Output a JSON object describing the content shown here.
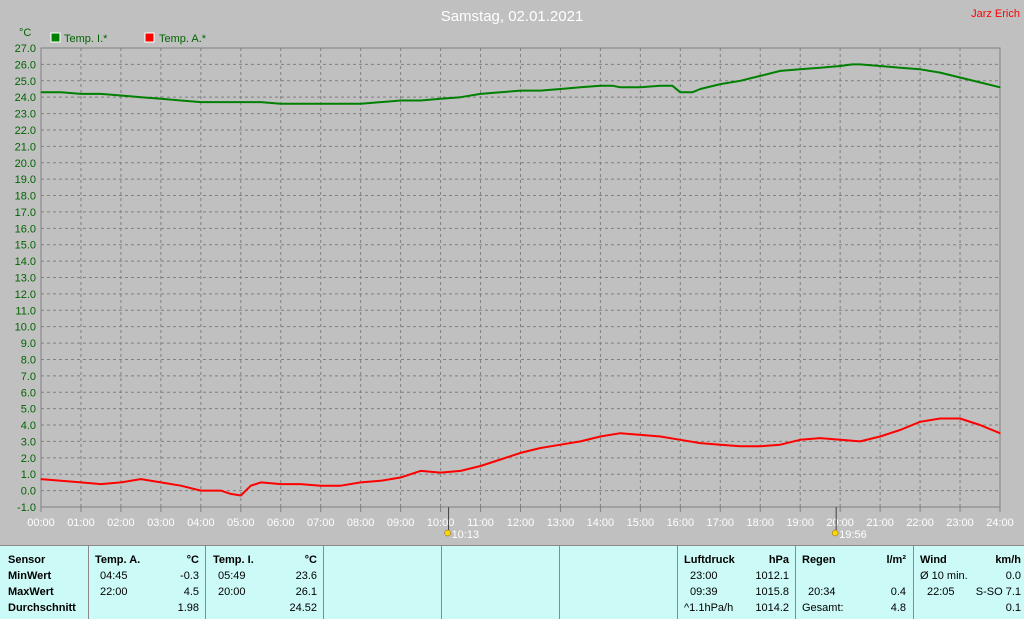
{
  "header": {
    "title": "Samstag, 02.01.2021",
    "author": "Jarz Erich"
  },
  "chart_data": {
    "type": "line",
    "y_unit": "°C",
    "ylim": [
      -1.0,
      27.0
    ],
    "y_ticks": [
      "27.0",
      "26.0",
      "25.0",
      "24.0",
      "23.0",
      "22.0",
      "21.0",
      "20.0",
      "19.0",
      "18.0",
      "17.0",
      "16.0",
      "15.0",
      "14.0",
      "13.0",
      "12.0",
      "11.0",
      "10.0",
      "9.0",
      "8.0",
      "7.0",
      "6.0",
      "5.0",
      "4.0",
      "3.0",
      "2.0",
      "1.0",
      "0.0",
      "-1.0"
    ],
    "x_ticks": [
      "00:00",
      "01:00",
      "02:00",
      "03:00",
      "04:00",
      "05:00",
      "06:00",
      "07:00",
      "08:00",
      "09:00",
      "10:00",
      "11:00",
      "12:00",
      "13:00",
      "14:00",
      "15:00",
      "16:00",
      "17:00",
      "18:00",
      "19:00",
      "20:00",
      "21:00",
      "22:00",
      "23:00",
      "24:00"
    ],
    "xlim": [
      0,
      24
    ],
    "grid": true,
    "legend": "top-left",
    "sun_markers": [
      {
        "hour": 10.2,
        "label": "10:13"
      },
      {
        "hour": 19.9,
        "label": "19:56"
      }
    ],
    "series": [
      {
        "name": "Temp. I.*",
        "color": "#008000",
        "x": [
          0,
          0.5,
          1,
          1.5,
          2,
          2.5,
          3,
          3.5,
          4,
          4.5,
          5,
          5.5,
          6,
          6.5,
          7,
          7.5,
          8,
          8.5,
          9,
          9.5,
          10,
          10.5,
          11,
          11.5,
          12,
          12.5,
          13,
          13.5,
          14,
          14.3,
          14.5,
          15,
          15.5,
          15.8,
          16,
          16.3,
          16.5,
          17,
          17.5,
          18,
          18.5,
          19,
          19.5,
          20,
          20.3,
          20.5,
          21,
          21.5,
          22,
          22.5,
          23,
          23.5,
          24
        ],
        "y": [
          24.3,
          24.3,
          24.2,
          24.2,
          24.1,
          24.0,
          23.9,
          23.8,
          23.7,
          23.7,
          23.7,
          23.7,
          23.6,
          23.6,
          23.6,
          23.6,
          23.6,
          23.7,
          23.8,
          23.8,
          23.9,
          24.0,
          24.2,
          24.3,
          24.4,
          24.4,
          24.5,
          24.6,
          24.7,
          24.7,
          24.6,
          24.6,
          24.7,
          24.7,
          24.3,
          24.3,
          24.5,
          24.8,
          25.0,
          25.3,
          25.6,
          25.7,
          25.8,
          25.9,
          26.0,
          26.0,
          25.9,
          25.8,
          25.7,
          25.5,
          25.2,
          24.9,
          24.6
        ]
      },
      {
        "name": "Temp. A.*",
        "color": "#ff0000",
        "x": [
          0,
          0.5,
          1,
          1.5,
          2,
          2.5,
          3,
          3.5,
          4,
          4.5,
          4.75,
          5,
          5.25,
          5.5,
          6,
          6.5,
          7,
          7.5,
          8,
          8.5,
          9,
          9.5,
          10,
          10.5,
          11,
          11.5,
          12,
          12.5,
          13,
          13.5,
          14,
          14.5,
          15,
          15.5,
          16,
          16.5,
          17,
          17.5,
          18,
          18.5,
          19,
          19.5,
          20,
          20.5,
          21,
          21.5,
          22,
          22.5,
          23,
          23.5,
          24
        ],
        "y": [
          0.7,
          0.6,
          0.5,
          0.4,
          0.5,
          0.7,
          0.5,
          0.3,
          0.0,
          0.0,
          -0.2,
          -0.3,
          0.3,
          0.5,
          0.4,
          0.4,
          0.3,
          0.3,
          0.5,
          0.6,
          0.8,
          1.2,
          1.1,
          1.2,
          1.5,
          1.9,
          2.3,
          2.6,
          2.8,
          3.0,
          3.3,
          3.5,
          3.4,
          3.3,
          3.1,
          2.9,
          2.8,
          2.7,
          2.7,
          2.8,
          3.1,
          3.2,
          3.1,
          3.0,
          3.3,
          3.7,
          4.2,
          4.4,
          4.4,
          4.0,
          3.5
        ]
      }
    ]
  },
  "stats": {
    "sensor": {
      "header": "Sensor",
      "min": "MinWert",
      "max": "MaxWert",
      "avg": "Durchschnitt"
    },
    "temp_a": {
      "header": "Temp. A.",
      "unit": "°C",
      "min_time": "04:45",
      "min_val": "-0.3",
      "max_time": "22:00",
      "max_val": "4.5",
      "avg": "1.98"
    },
    "temp_i": {
      "header": "Temp. I.",
      "unit": "°C",
      "min_time": "05:49",
      "min_val": "23.6",
      "max_time": "20:00",
      "max_val": "26.1",
      "avg": "24.52"
    },
    "pressure": {
      "header": "Luftdruck",
      "unit": "hPa",
      "min_time": "23:00",
      "min_val": "1012.1",
      "max_time": "09:39",
      "max_val": "1015.8",
      "trend": "^1.1hPa/h",
      "trend_val": "1014.2"
    },
    "rain": {
      "header": "Regen",
      "unit": "l/m²",
      "max_time": "20:34",
      "max_val": "0.4",
      "total_label": "Gesamt:",
      "total_val": "4.8"
    },
    "wind": {
      "header": "Wind",
      "unit": "km/h",
      "avg_label": "Ø 10 min.",
      "avg_val": "0.0",
      "max_time": "22:05",
      "max_val": "S-SO 7.1",
      "last_val": "0.1"
    }
  }
}
